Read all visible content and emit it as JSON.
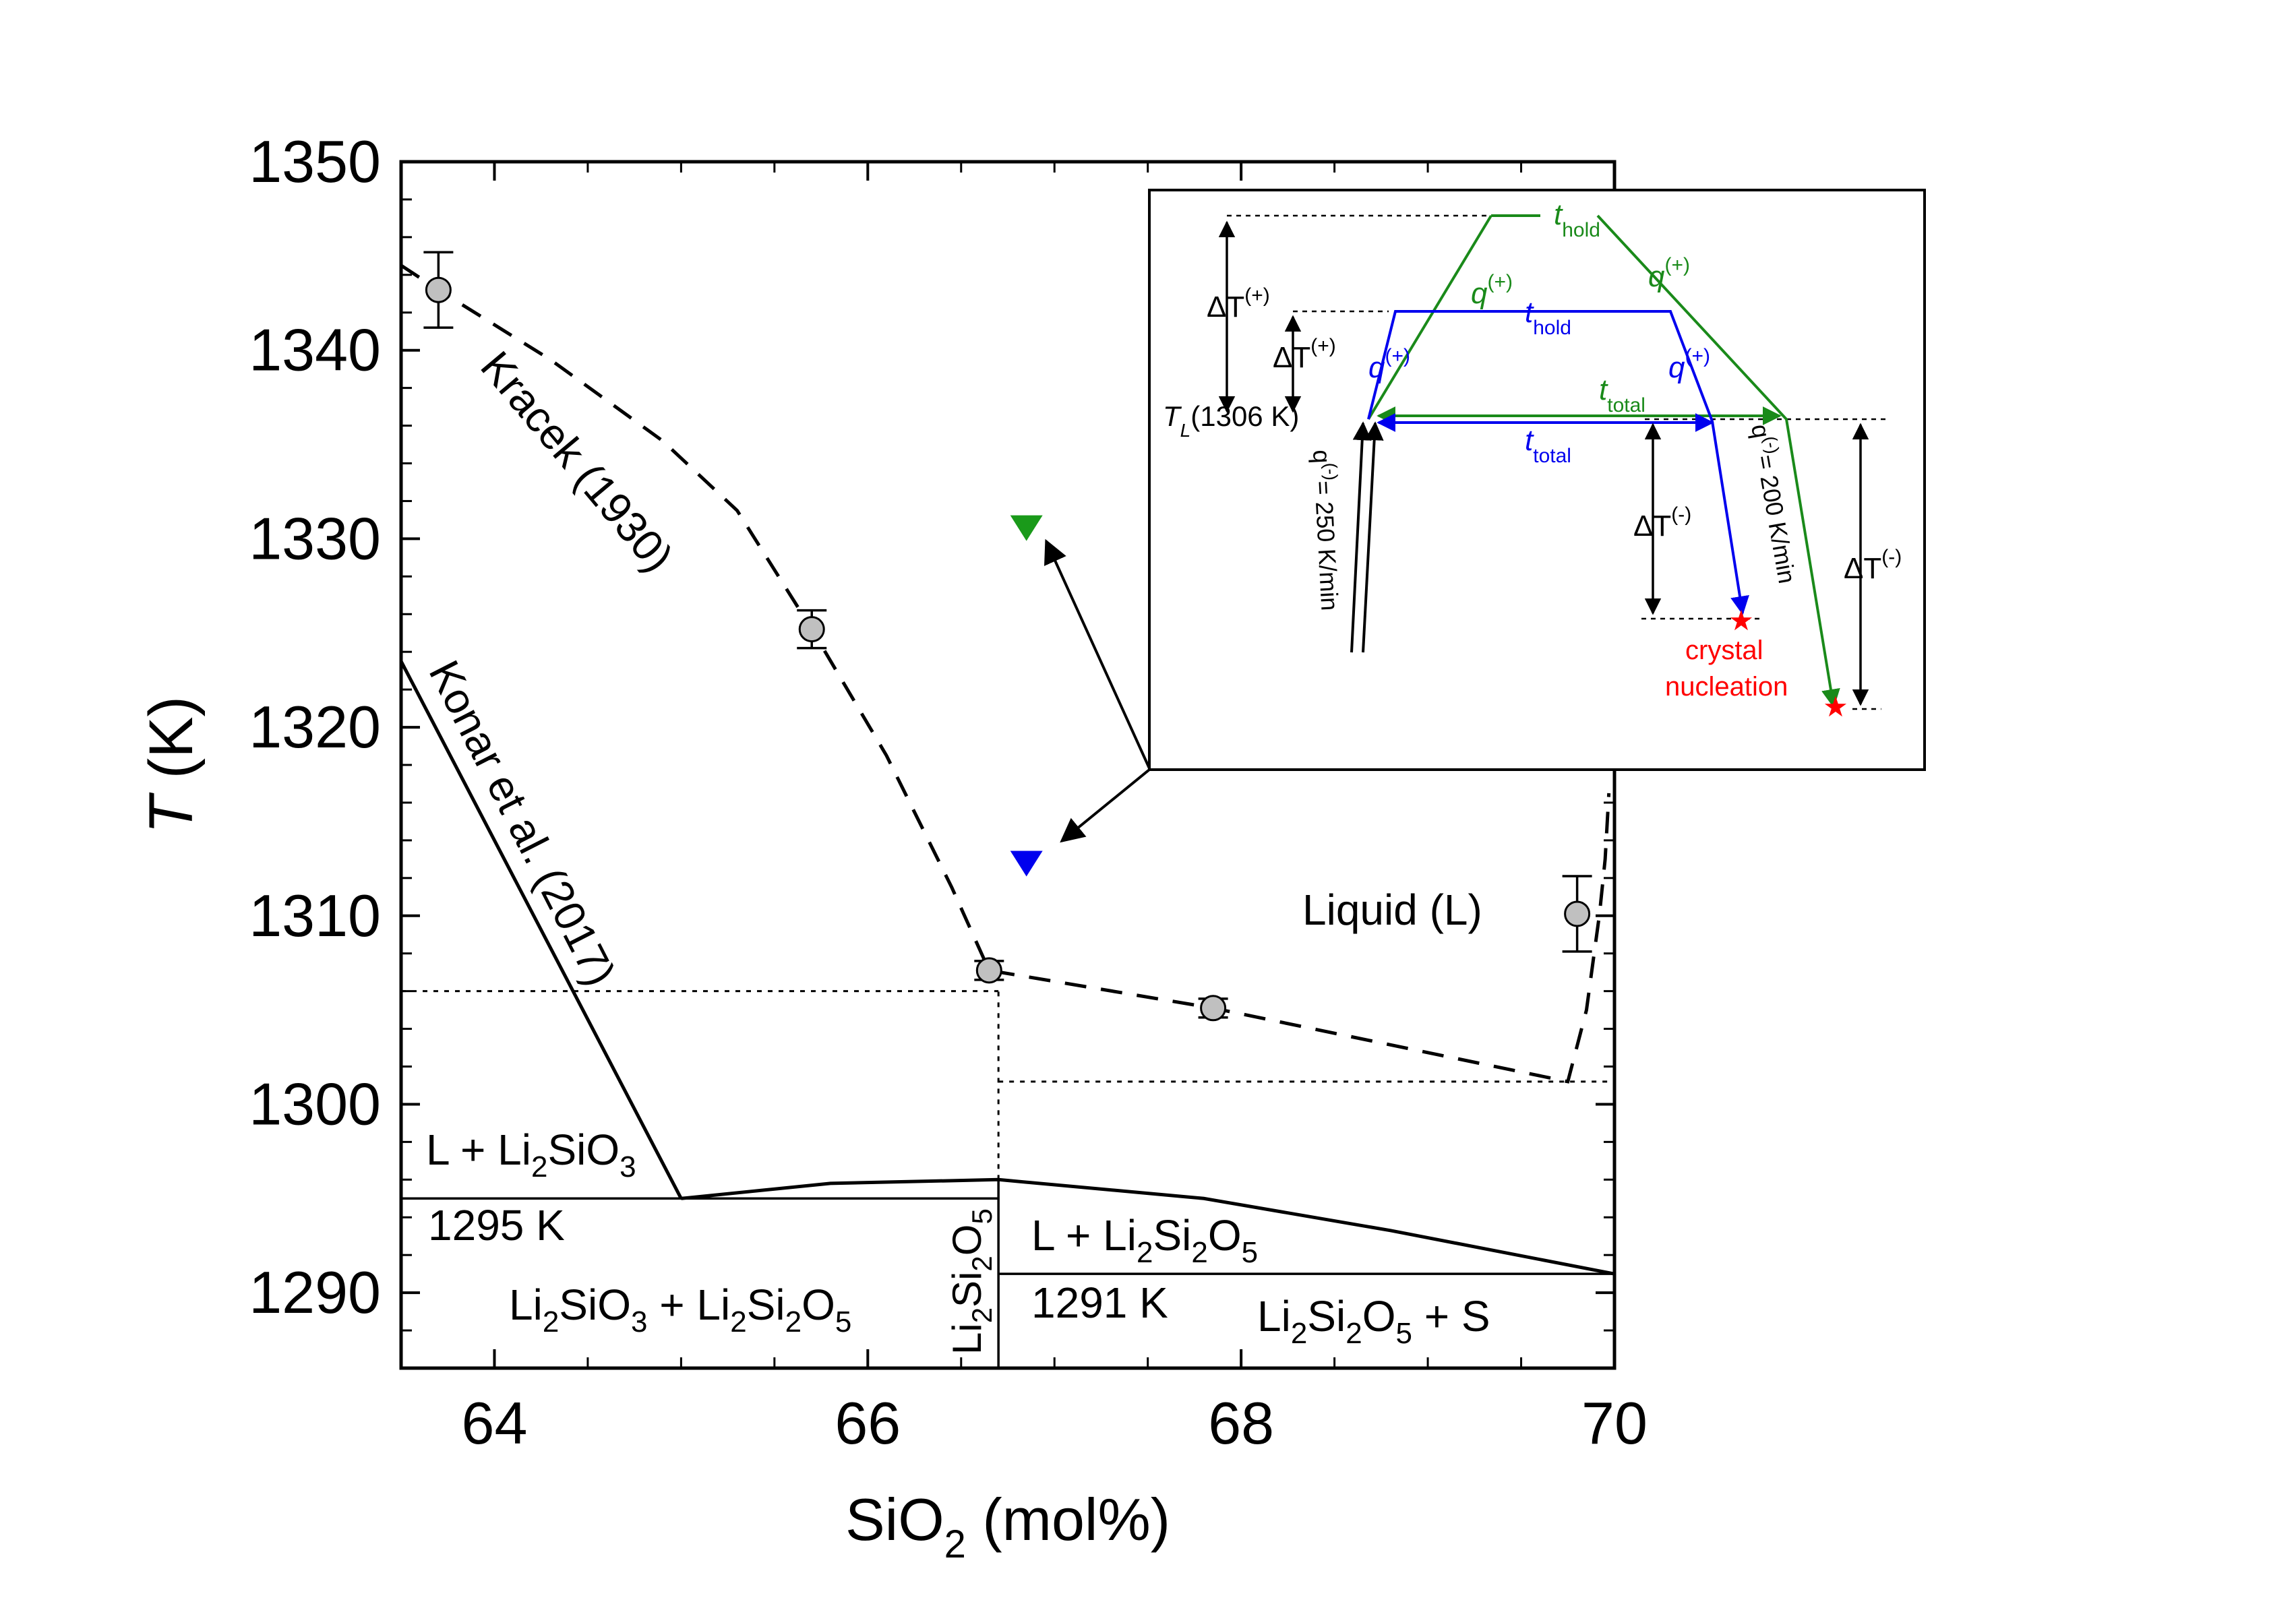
{
  "chart_data": {
    "type": "scatter",
    "xlabel": {
      "main": "SiO",
      "sub": "2",
      "unit": " (mol%)"
    },
    "ylabel": {
      "italic": "T",
      "unit": " (K)"
    },
    "xlim": [
      63.5,
      70
    ],
    "ylim": [
      1286,
      1350
    ],
    "x_ticks": [
      64,
      66,
      68,
      70
    ],
    "x_tick_labels": [
      "64",
      "66",
      "68",
      "70"
    ],
    "y_ticks": [
      1290,
      1300,
      1310,
      1320,
      1330,
      1340,
      1350
    ],
    "y_tick_labels": [
      "1290",
      "1300",
      "1310",
      "1320",
      "1330",
      "1340",
      "1350"
    ],
    "grid": false,
    "series": [
      {
        "name": "Kracek (1930)",
        "style": "dashed-line-with-points",
        "color": "#000000",
        "marker_color": "#c0c0c0",
        "points": [
          {
            "x": 63.7,
            "y": 1343.2,
            "err": 2.0
          },
          {
            "x": 65.7,
            "y": 1325.2,
            "err": 1.0
          },
          {
            "x": 66.65,
            "y": 1307.1,
            "err": 0.5
          },
          {
            "x": 67.85,
            "y": 1305.1,
            "err": 0.5
          },
          {
            "x": 69.8,
            "y": 1310.1,
            "err": 2.0
          }
        ],
        "curve": [
          [
            63.5,
            1344.5
          ],
          [
            63.7,
            1343.2
          ],
          [
            64.3,
            1339.5
          ],
          [
            64.9,
            1335.2
          ],
          [
            65.3,
            1331.5
          ],
          [
            65.7,
            1325.2
          ],
          [
            66.1,
            1318.5
          ],
          [
            66.45,
            1311.5
          ],
          [
            66.65,
            1307.1
          ],
          [
            67.85,
            1305.1
          ],
          [
            69.75,
            1301.2
          ],
          [
            69.85,
            1305.0
          ],
          [
            69.92,
            1310.1
          ],
          [
            69.95,
            1313.0
          ],
          [
            69.97,
            1316.5
          ]
        ]
      },
      {
        "name": "Konar et al. (2017)",
        "style": "solid-line",
        "color": "#000000",
        "points": [
          [
            63.5,
            1323.5
          ],
          [
            65.0,
            1295.0
          ]
        ]
      }
    ],
    "phase_lines": [
      {
        "id": "eutectic-left",
        "x1": 63.5,
        "x2": 66.7,
        "y": 1295,
        "style": "solid-thin"
      },
      {
        "id": "eutectic-right",
        "x1": 66.7,
        "x2": 70,
        "y": 1291,
        "style": "solid-thin"
      },
      {
        "id": "li2si2o5-vertical",
        "x": 66.7,
        "y1": 1286,
        "y2": 1296,
        "style": "solid-thin"
      },
      {
        "id": "dotted-1306",
        "x1": 63.5,
        "x2": 66.7,
        "y": 1306,
        "style": "dotted"
      },
      {
        "id": "dotted-vertical",
        "x": 66.7,
        "y1": 1296,
        "y2": 1306,
        "style": "dotted"
      },
      {
        "id": "dotted-1301",
        "x1": 66.7,
        "x2": 70,
        "y": 1301.2,
        "style": "dotted"
      }
    ],
    "liquidus_li2si2o5": [
      [
        65.0,
        1295.0
      ],
      [
        65.8,
        1295.8
      ],
      [
        66.7,
        1296.0
      ],
      [
        67.8,
        1295.0
      ],
      [
        68.8,
        1293.3
      ],
      [
        70.0,
        1291.0
      ]
    ],
    "markers": [
      {
        "id": "green-triangle",
        "x": 66.85,
        "y": 1330.6,
        "color": "#1a9a1a"
      },
      {
        "id": "blue-triangle",
        "x": 66.85,
        "y": 1312.8,
        "color": "#0000ee"
      }
    ],
    "region_labels": {
      "liquid": "Liquid (L)",
      "l_li2sio3": {
        "a": "L + Li",
        "a_sub": "2",
        "b": "SiO",
        "b_sub": "3"
      },
      "k1295": "1295 K",
      "li2sio3_li2si2o5": {
        "a": "Li",
        "a_sub": "2",
        "b": "SiO",
        "b_sub": "3",
        "c": " + Li",
        "c_sub": "2",
        "d": "Si",
        "d_sub": "2",
        "e": "O",
        "e_sub": "5"
      },
      "vertical_li2si2o5": {
        "a": "Li",
        "a_sub": "2",
        "b": "Si",
        "b_sub": "2",
        "c": "O",
        "c_sub": "5"
      },
      "l_li2si2o5": {
        "a": "L + Li",
        "a_sub": "2",
        "b": "Si",
        "b_sub": "2",
        "c": "O",
        "c_sub": "5"
      },
      "k1291": "1291 K",
      "li2si2o5_s": {
        "a": "Li",
        "a_sub": "2",
        "b": "Si",
        "b_sub": "2",
        "c": "O",
        "c_sub": "5",
        "d": " + S"
      }
    },
    "curve_labels": {
      "kracek": "Kracek (1930)",
      "konar": "Konar et al. (2017)"
    },
    "inset": {
      "colors": {
        "green": "#1a8a1a",
        "blue": "#0000ee",
        "red": "#ff0000",
        "black": "#000000"
      },
      "t_hold": {
        "t": "t",
        "sub": "hold"
      },
      "t_total": {
        "t": "t",
        "sub": "total"
      },
      "q_plus": {
        "q": "q",
        "sup": "(+)"
      },
      "delta_t_plus": {
        "d": "ΔT",
        "sup": "(+)"
      },
      "delta_t_minus": {
        "d": "ΔT",
        "sup": "(-)"
      },
      "tl_label": {
        "t": "T",
        "sub": "L",
        "rest": "(1306 K)"
      },
      "q_minus_250": {
        "q": "q",
        "sup": "(-)",
        "rest": "= 250 K/min"
      },
      "q_minus_200": {
        "q": "q",
        "sup": "(-)",
        "rest": "= 200 K/min"
      },
      "crystal": "crystal",
      "nucleation": "nucleation"
    }
  }
}
